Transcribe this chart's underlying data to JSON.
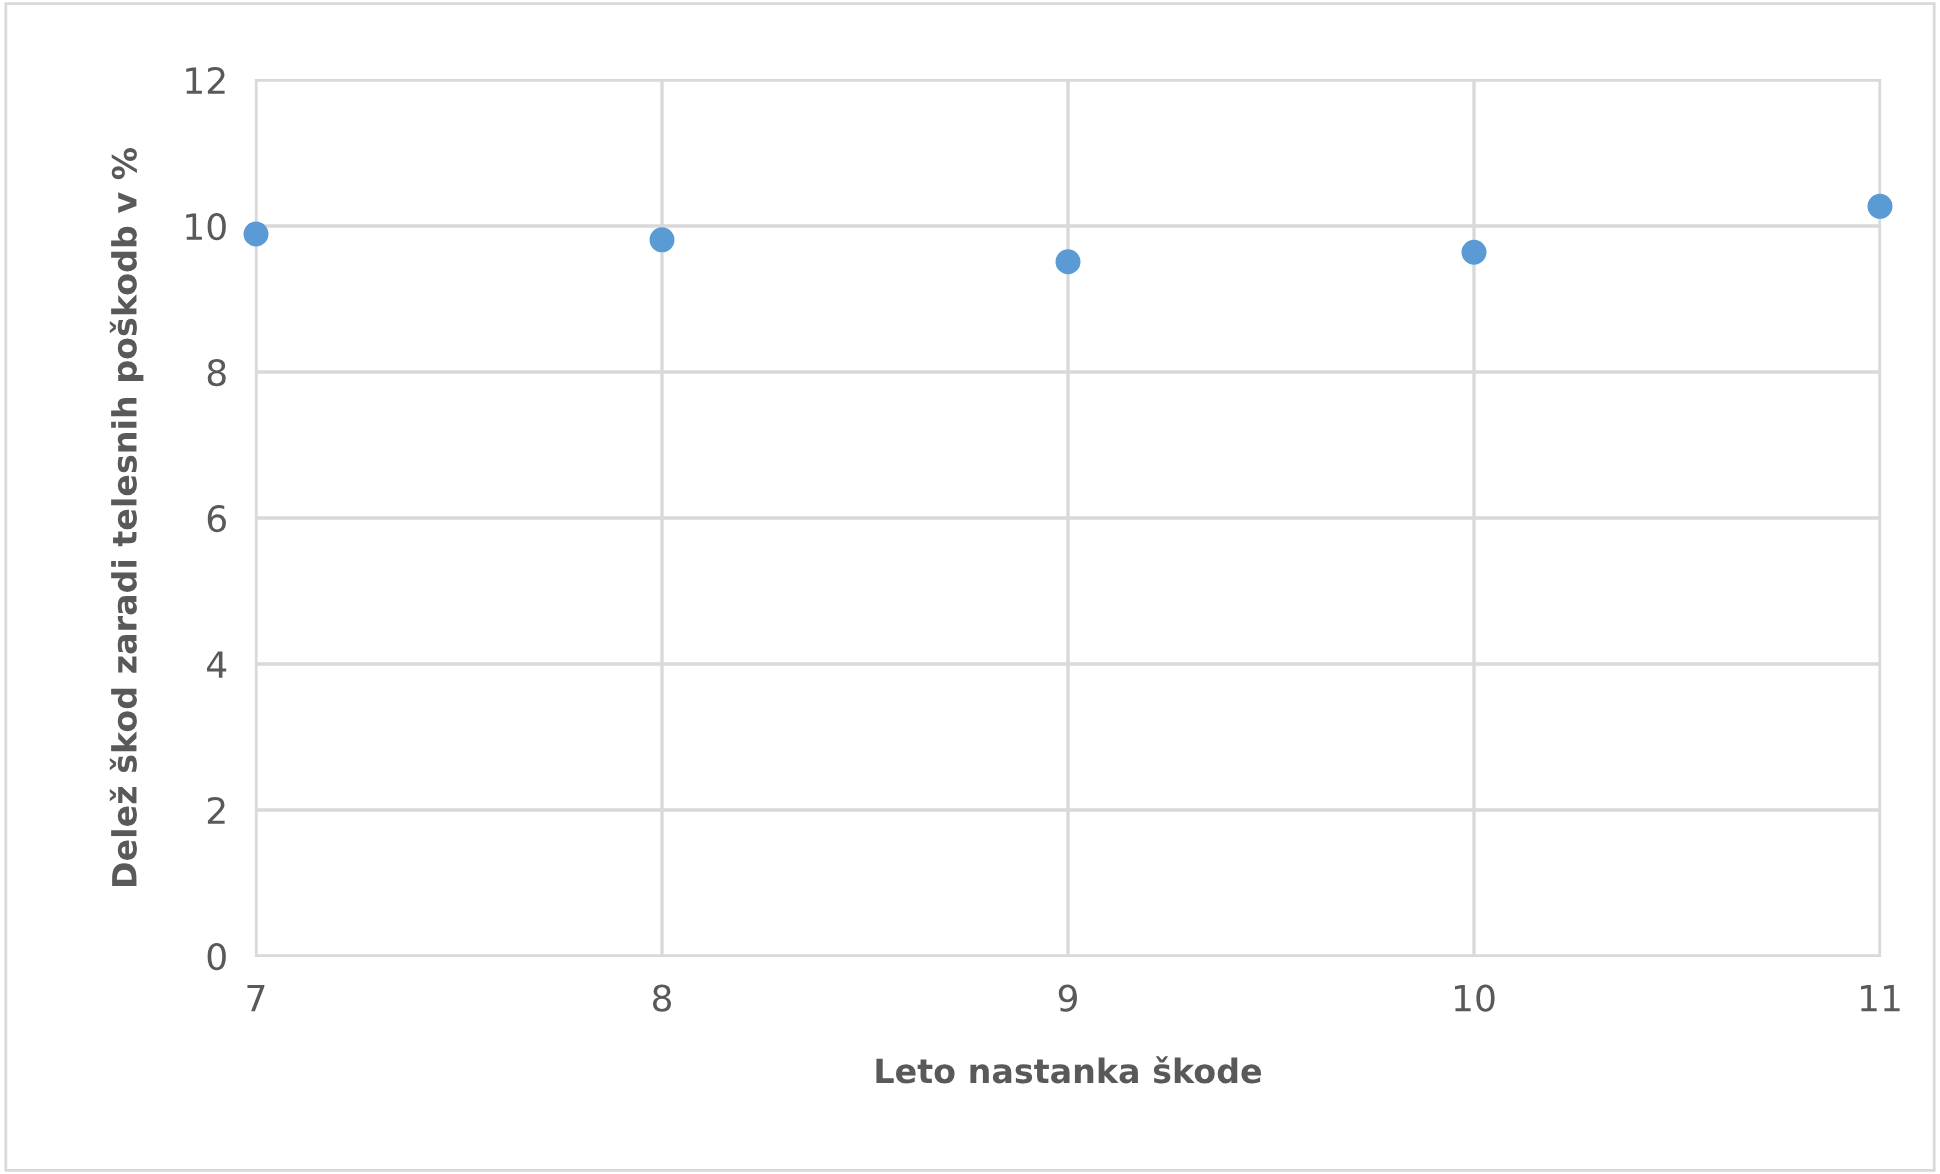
{
  "chart_data": {
    "type": "scatter",
    "xlabel": "Leto nastanka škode",
    "ylabel": "Delež škod zaradi telesnih poškodb v %",
    "x": [
      7,
      8,
      9,
      10,
      11
    ],
    "series": [
      {
        "color": "#5b9bd5",
        "values": [
          9.89,
          9.81,
          9.51,
          9.64,
          10.27
        ]
      }
    ],
    "xlim": [
      7,
      11
    ],
    "xticks": [
      7,
      8,
      9,
      10,
      11
    ],
    "ylim": [
      0,
      12
    ],
    "yticks": [
      0,
      2,
      4,
      6,
      8,
      10,
      12
    ],
    "grid": true,
    "marker": "circle",
    "legend": false
  }
}
